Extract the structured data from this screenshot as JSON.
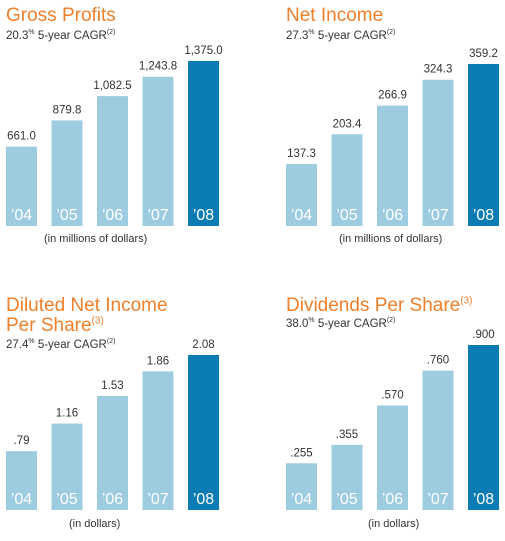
{
  "colors": {
    "accent": "#f07f2a",
    "bar": "#9dcbe0",
    "highlight": "#0a7cb3"
  },
  "chart_data": [
    {
      "type": "bar",
      "title": "Gross Profits",
      "title_sup": "",
      "subtitle_value": "20.3",
      "subtitle_pct": "%",
      "subtitle_text": " 5-year CAGR",
      "subtitle_sup": "(2)",
      "xlabel": "(in millions of dollars)",
      "categories": [
        "’04",
        "’05",
        "’06",
        "’07",
        "’08"
      ],
      "values": [
        661.0,
        879.8,
        1082.5,
        1243.8,
        1375.0
      ],
      "labels": [
        "661.0",
        "879.8",
        "1,082.5",
        "1,243.8",
        "1,375.0"
      ],
      "highlight_index": 4
    },
    {
      "type": "bar",
      "title": "Net Income",
      "title_sup": "",
      "subtitle_value": "27.3",
      "subtitle_pct": "%",
      "subtitle_text": " 5-year CAGR",
      "subtitle_sup": "(2)",
      "xlabel": "(in millions of dollars)",
      "categories": [
        "’04",
        "’05",
        "’06",
        "’07",
        "’08"
      ],
      "values": [
        137.3,
        203.4,
        266.9,
        324.3,
        359.2
      ],
      "labels": [
        "137.3",
        "203.4",
        "266.9",
        "324.3",
        "359.2"
      ],
      "highlight_index": 4
    },
    {
      "type": "bar",
      "title": "Diluted Net Income",
      "title_line2": "Per Share",
      "title_sup": "(3)",
      "subtitle_value": "27.4",
      "subtitle_pct": "%",
      "subtitle_text": " 5-year CAGR",
      "subtitle_sup": "(2)",
      "xlabel": "(in dollars)",
      "categories": [
        "’04",
        "’05",
        "’06",
        "’07",
        "’08"
      ],
      "values": [
        0.79,
        1.16,
        1.53,
        1.86,
        2.08
      ],
      "labels": [
        ".79",
        "1.16",
        "1.53",
        "1.86",
        "2.08"
      ],
      "highlight_index": 4
    },
    {
      "type": "bar",
      "title": "Dividends Per Share",
      "title_sup": "(3)",
      "subtitle_value": "38.0",
      "subtitle_pct": "%",
      "subtitle_text": " 5-year CAGR",
      "subtitle_sup": "(2)",
      "xlabel": "(in dollars)",
      "categories": [
        "’04",
        "’05",
        "’06",
        "’07",
        "’08"
      ],
      "values": [
        0.255,
        0.355,
        0.57,
        0.76,
        0.9
      ],
      "labels": [
        ".255",
        ".355",
        ".570",
        ".760",
        ".900"
      ],
      "highlight_index": 4
    }
  ]
}
